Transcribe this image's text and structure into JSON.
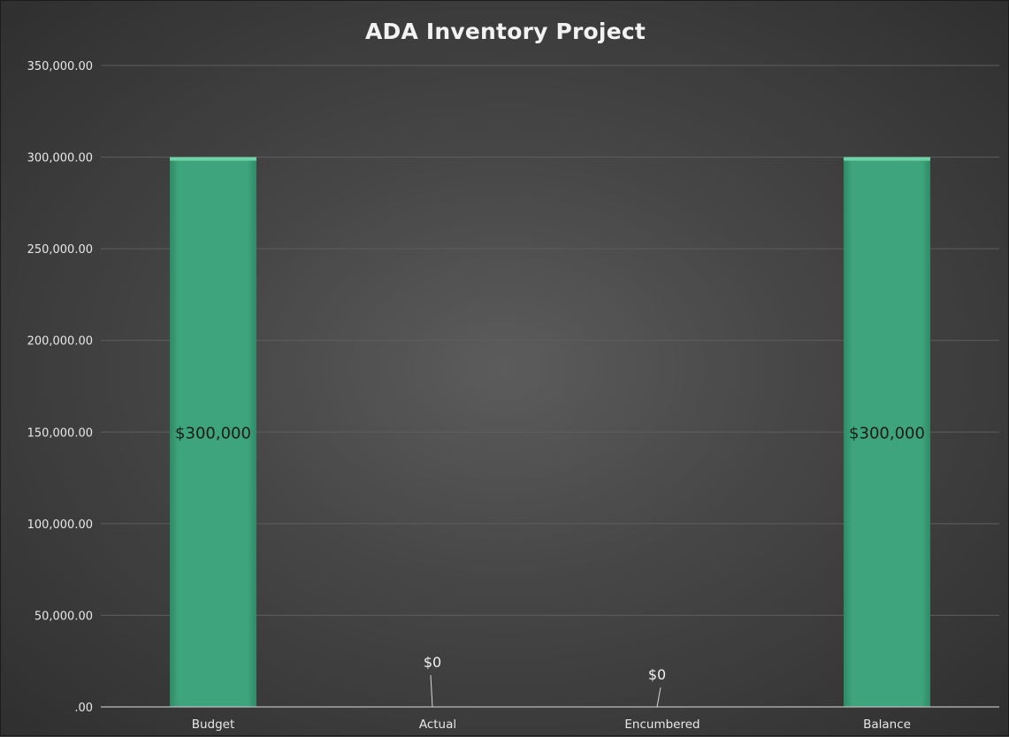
{
  "chart_data": {
    "type": "bar",
    "title": "ADA Inventory Project",
    "xlabel": "",
    "ylabel": "",
    "categories": [
      "Budget",
      "Actual",
      "Encumbered",
      "Balance"
    ],
    "values": [
      300000,
      0,
      0,
      300000
    ],
    "data_labels": [
      "$300,000",
      "$0",
      "$0",
      "$300,000"
    ],
    "ylim": [
      0,
      350000
    ],
    "yticks": [
      0,
      50000,
      100000,
      150000,
      200000,
      250000,
      300000,
      350000
    ],
    "ytick_labels": [
      ".00",
      "50,000.00",
      "100,000.00",
      "150,000.00",
      "200,000.00",
      "250,000.00",
      "300,000.00",
      "350,000.00"
    ],
    "grid": true,
    "legend": "none",
    "colors": {
      "bar": "#3ea47d",
      "bar_highlight": "#6fd3a8",
      "background": "#454545",
      "gridline": "#5e5e5e",
      "text": "#e8e8e8"
    }
  }
}
